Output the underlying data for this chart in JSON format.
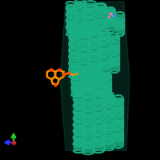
{
  "background_color": "#000000",
  "protein_color": "#1ab085",
  "ligand_color": "#ff8c00",
  "ligand2_color": "#ff4500",
  "axis_x_color": "#3333ff",
  "axis_y_color": "#22cc22",
  "axis_origin_color": "#cc2222",
  "figsize": [
    2.0,
    2.0
  ],
  "dpi": 100
}
